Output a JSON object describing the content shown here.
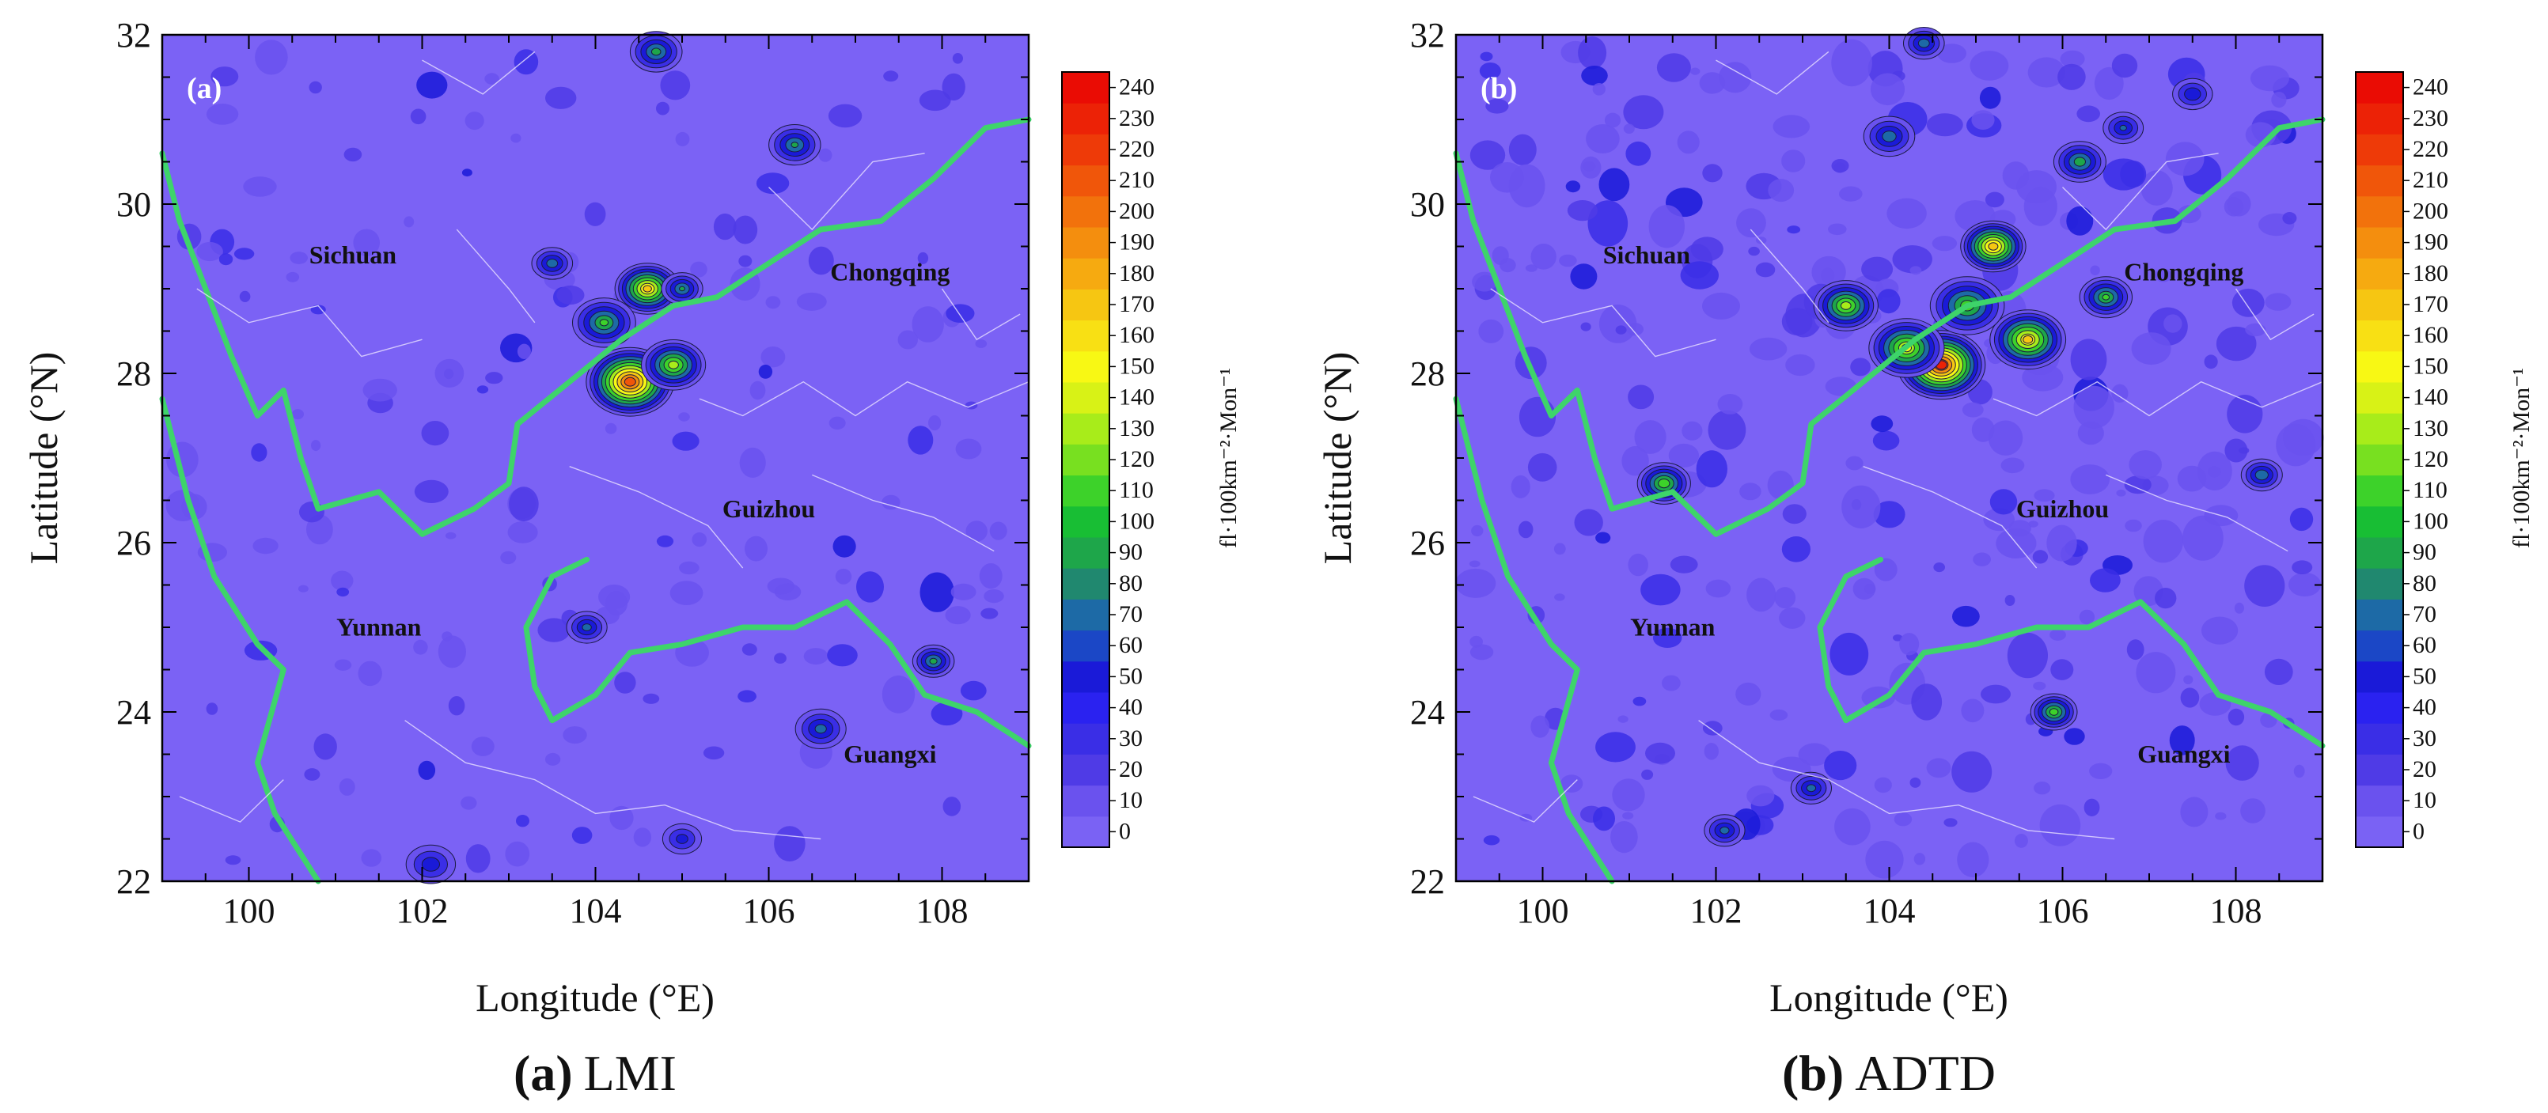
{
  "panels": [
    {
      "label": "(a)",
      "caption_letter": "(a)",
      "caption_name": "LMI",
      "xlabel": "Longitude (°E)",
      "ylabel": "Latitude (°N)",
      "x_ticks": [
        "100",
        "102",
        "104",
        "106",
        "108"
      ],
      "y_ticks": [
        "22",
        "24",
        "26",
        "28",
        "30",
        "32"
      ],
      "provinces": [
        {
          "name": "Sichuan",
          "lon": 101.2,
          "lat": 29.3
        },
        {
          "name": "Chongqing",
          "lon": 107.4,
          "lat": 29.1
        },
        {
          "name": "Guizhou",
          "lon": 106.0,
          "lat": 26.3
        },
        {
          "name": "Yunnan",
          "lon": 101.5,
          "lat": 24.9
        },
        {
          "name": "Guangxi",
          "lon": 107.4,
          "lat": 23.4
        }
      ],
      "hotspots": [
        {
          "lon": 104.7,
          "lat": 31.8,
          "peak": 95,
          "r": 0.25
        },
        {
          "lon": 106.3,
          "lat": 30.7,
          "peak": 90,
          "r": 0.25
        },
        {
          "lon": 104.6,
          "lat": 29.0,
          "peak": 175,
          "r": 0.3
        },
        {
          "lon": 104.4,
          "lat": 27.9,
          "peak": 225,
          "r": 0.4
        },
        {
          "lon": 104.9,
          "lat": 28.1,
          "peak": 140,
          "r": 0.3
        },
        {
          "lon": 103.5,
          "lat": 29.3,
          "peak": 80,
          "r": 0.2
        },
        {
          "lon": 105.0,
          "lat": 29.0,
          "peak": 90,
          "r": 0.2
        },
        {
          "lon": 104.1,
          "lat": 28.6,
          "peak": 110,
          "r": 0.3
        },
        {
          "lon": 107.9,
          "lat": 24.6,
          "peak": 95,
          "r": 0.2
        },
        {
          "lon": 106.6,
          "lat": 23.8,
          "peak": 75,
          "r": 0.25
        },
        {
          "lon": 103.9,
          "lat": 25.0,
          "peak": 75,
          "r": 0.2
        },
        {
          "lon": 102.1,
          "lat": 22.2,
          "peak": 60,
          "r": 0.25
        },
        {
          "lon": 105.0,
          "lat": 22.5,
          "peak": 55,
          "r": 0.2
        }
      ]
    },
    {
      "label": "(b)",
      "caption_letter": "(b)",
      "caption_name": "ADTD",
      "xlabel": "Longitude (°E)",
      "ylabel": "Latitude (°N)",
      "x_ticks": [
        "100",
        "102",
        "104",
        "106",
        "108"
      ],
      "y_ticks": [
        "22",
        "24",
        "26",
        "28",
        "30",
        "32"
      ],
      "provinces": [
        {
          "name": "Sichuan",
          "lon": 101.2,
          "lat": 29.3
        },
        {
          "name": "Chongqing",
          "lon": 107.4,
          "lat": 29.1
        },
        {
          "name": "Guizhou",
          "lon": 106.0,
          "lat": 26.3
        },
        {
          "name": "Yunnan",
          "lon": 101.5,
          "lat": 24.9
        },
        {
          "name": "Guangxi",
          "lon": 107.4,
          "lat": 23.4
        }
      ],
      "hotspots": [
        {
          "lon": 104.6,
          "lat": 28.1,
          "peak": 235,
          "r": 0.4
        },
        {
          "lon": 105.2,
          "lat": 29.5,
          "peak": 185,
          "r": 0.3
        },
        {
          "lon": 105.6,
          "lat": 28.4,
          "peak": 170,
          "r": 0.35
        },
        {
          "lon": 104.2,
          "lat": 28.3,
          "peak": 150,
          "r": 0.35
        },
        {
          "lon": 103.5,
          "lat": 28.8,
          "peak": 140,
          "r": 0.3
        },
        {
          "lon": 104.9,
          "lat": 28.8,
          "peak": 120,
          "r": 0.35
        },
        {
          "lon": 106.5,
          "lat": 28.9,
          "peak": 110,
          "r": 0.25
        },
        {
          "lon": 106.2,
          "lat": 30.5,
          "peak": 100,
          "r": 0.25
        },
        {
          "lon": 104.0,
          "lat": 30.8,
          "peak": 80,
          "r": 0.25
        },
        {
          "lon": 104.4,
          "lat": 31.9,
          "peak": 80,
          "r": 0.2
        },
        {
          "lon": 101.4,
          "lat": 26.7,
          "peak": 125,
          "r": 0.25
        },
        {
          "lon": 105.9,
          "lat": 24.0,
          "peak": 120,
          "r": 0.22
        },
        {
          "lon": 108.3,
          "lat": 26.8,
          "peak": 85,
          "r": 0.2
        },
        {
          "lon": 102.1,
          "lat": 22.6,
          "peak": 75,
          "r": 0.2
        },
        {
          "lon": 103.1,
          "lat": 23.1,
          "peak": 75,
          "r": 0.2
        },
        {
          "lon": 106.7,
          "lat": 30.9,
          "peak": 70,
          "r": 0.2
        },
        {
          "lon": 107.5,
          "lat": 31.3,
          "peak": 65,
          "r": 0.2
        }
      ]
    }
  ],
  "colorbar": {
    "unit_label": "fl·100km⁻²·Mon⁻¹",
    "tick_labels": [
      "0",
      "10",
      "20",
      "30",
      "40",
      "50",
      "60",
      "70",
      "80",
      "90",
      "100",
      "110",
      "120",
      "130",
      "140",
      "150",
      "160",
      "170",
      "180",
      "190",
      "200",
      "210",
      "220",
      "230",
      "240"
    ],
    "colors": [
      "#7a62f4",
      "#6a52ee",
      "#4f3be6",
      "#3a2ee6",
      "#2a22f0",
      "#1a1ad8",
      "#1b47c6",
      "#1d6aa6",
      "#20886f",
      "#1ea64a",
      "#18be34",
      "#3dd22a",
      "#78e020",
      "#a8ec1a",
      "#d8f216",
      "#f8f814",
      "#f8e014",
      "#f6c612",
      "#f6aa10",
      "#f48e0e",
      "#f2720c",
      "#f0560a",
      "#ee3a08",
      "#ec2206",
      "#ea0c04"
    ]
  },
  "chart_data": [
    {
      "type": "heatmap",
      "title": "(a) LMI",
      "xlabel": "Longitude (°E)",
      "ylabel": "Latitude (°N)",
      "xlim": [
        99,
        109
      ],
      "ylim": [
        22,
        32
      ],
      "colorbar_range": [
        0,
        240
      ],
      "colorbar_label": "fl·100km⁻²·Mon⁻¹",
      "peaks": [
        {
          "lon": 104.4,
          "lat": 27.9,
          "value": 225
        },
        {
          "lon": 104.6,
          "lat": 29.0,
          "value": 175
        },
        {
          "lon": 104.7,
          "lat": 31.8,
          "value": 95
        },
        {
          "lon": 106.3,
          "lat": 30.7,
          "value": 90
        },
        {
          "lon": 107.9,
          "lat": 24.6,
          "value": 95
        }
      ]
    },
    {
      "type": "heatmap",
      "title": "(b) ADTD",
      "xlabel": "Longitude (°E)",
      "ylabel": "Latitude (°N)",
      "xlim": [
        99,
        109
      ],
      "ylim": [
        22,
        32
      ],
      "colorbar_range": [
        0,
        240
      ],
      "colorbar_label": "fl·100km⁻²·Mon⁻¹",
      "peaks": [
        {
          "lon": 104.6,
          "lat": 28.1,
          "value": 235
        },
        {
          "lon": 105.2,
          "lat": 29.5,
          "value": 185
        },
        {
          "lon": 105.6,
          "lat": 28.4,
          "value": 170
        },
        {
          "lon": 101.4,
          "lat": 26.7,
          "value": 125
        },
        {
          "lon": 105.9,
          "lat": 24.0,
          "value": 120
        }
      ]
    }
  ]
}
